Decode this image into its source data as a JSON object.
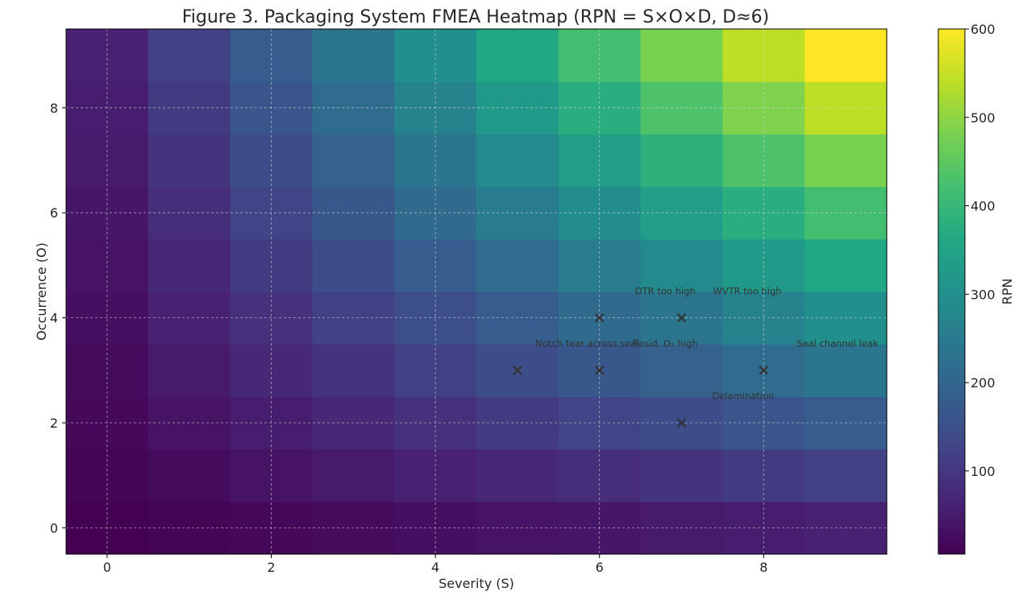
{
  "chart_data": {
    "type": "heatmap",
    "title": "Figure 3. Packaging System FMEA Heatmap (RPN = S×O×D, D≈6)",
    "xlabel": "Severity (S)",
    "ylabel": "Occurrence (O)",
    "x_range": [
      -0.5,
      9.5
    ],
    "y_range": [
      -0.5,
      9.5
    ],
    "x_ticks": [
      0,
      2,
      4,
      6,
      8
    ],
    "y_ticks": [
      0,
      2,
      4,
      6,
      8
    ],
    "grid": true,
    "grid_x": [
      0,
      1,
      2,
      3,
      4,
      5,
      6,
      7,
      8,
      9
    ],
    "grid_y": [
      0,
      1,
      2,
      3,
      4,
      5,
      6,
      7,
      8,
      9
    ],
    "detection_multiplier": 6,
    "colorbar": {
      "label": "RPN",
      "min": 6,
      "max": 600,
      "ticks": [
        100,
        200,
        300,
        400,
        500,
        600
      ]
    },
    "colormap": "viridis",
    "points": [
      {
        "label": "Notch tear across seal",
        "x": 6,
        "y": 3
      },
      {
        "label": "Resid. O₂ high",
        "x": 7,
        "y": 2
      },
      {
        "label": "OTR too high",
        "x": 6,
        "y": 4
      },
      {
        "label": "WVTR too high",
        "x": 7,
        "y": 4
      },
      {
        "label": "Seal channel leak",
        "x": 8,
        "y": 3
      },
      {
        "label": "Delamination",
        "x": 5,
        "y": 3
      }
    ],
    "annotations": [
      {
        "text": "OTR too high",
        "x": 6.8,
        "y": 4.45
      },
      {
        "text": "WVTR too high",
        "x": 7.8,
        "y": 4.45
      },
      {
        "text": "Notch tear across seal",
        "x": 5.85,
        "y": 3.45
      },
      {
        "text": "Resid. O₂ high",
        "x": 6.8,
        "y": 3.45
      },
      {
        "text": "Seal channel leak",
        "x": 8.9,
        "y": 3.45
      },
      {
        "text": "Delamination",
        "x": 7.75,
        "y": 2.45
      }
    ]
  }
}
